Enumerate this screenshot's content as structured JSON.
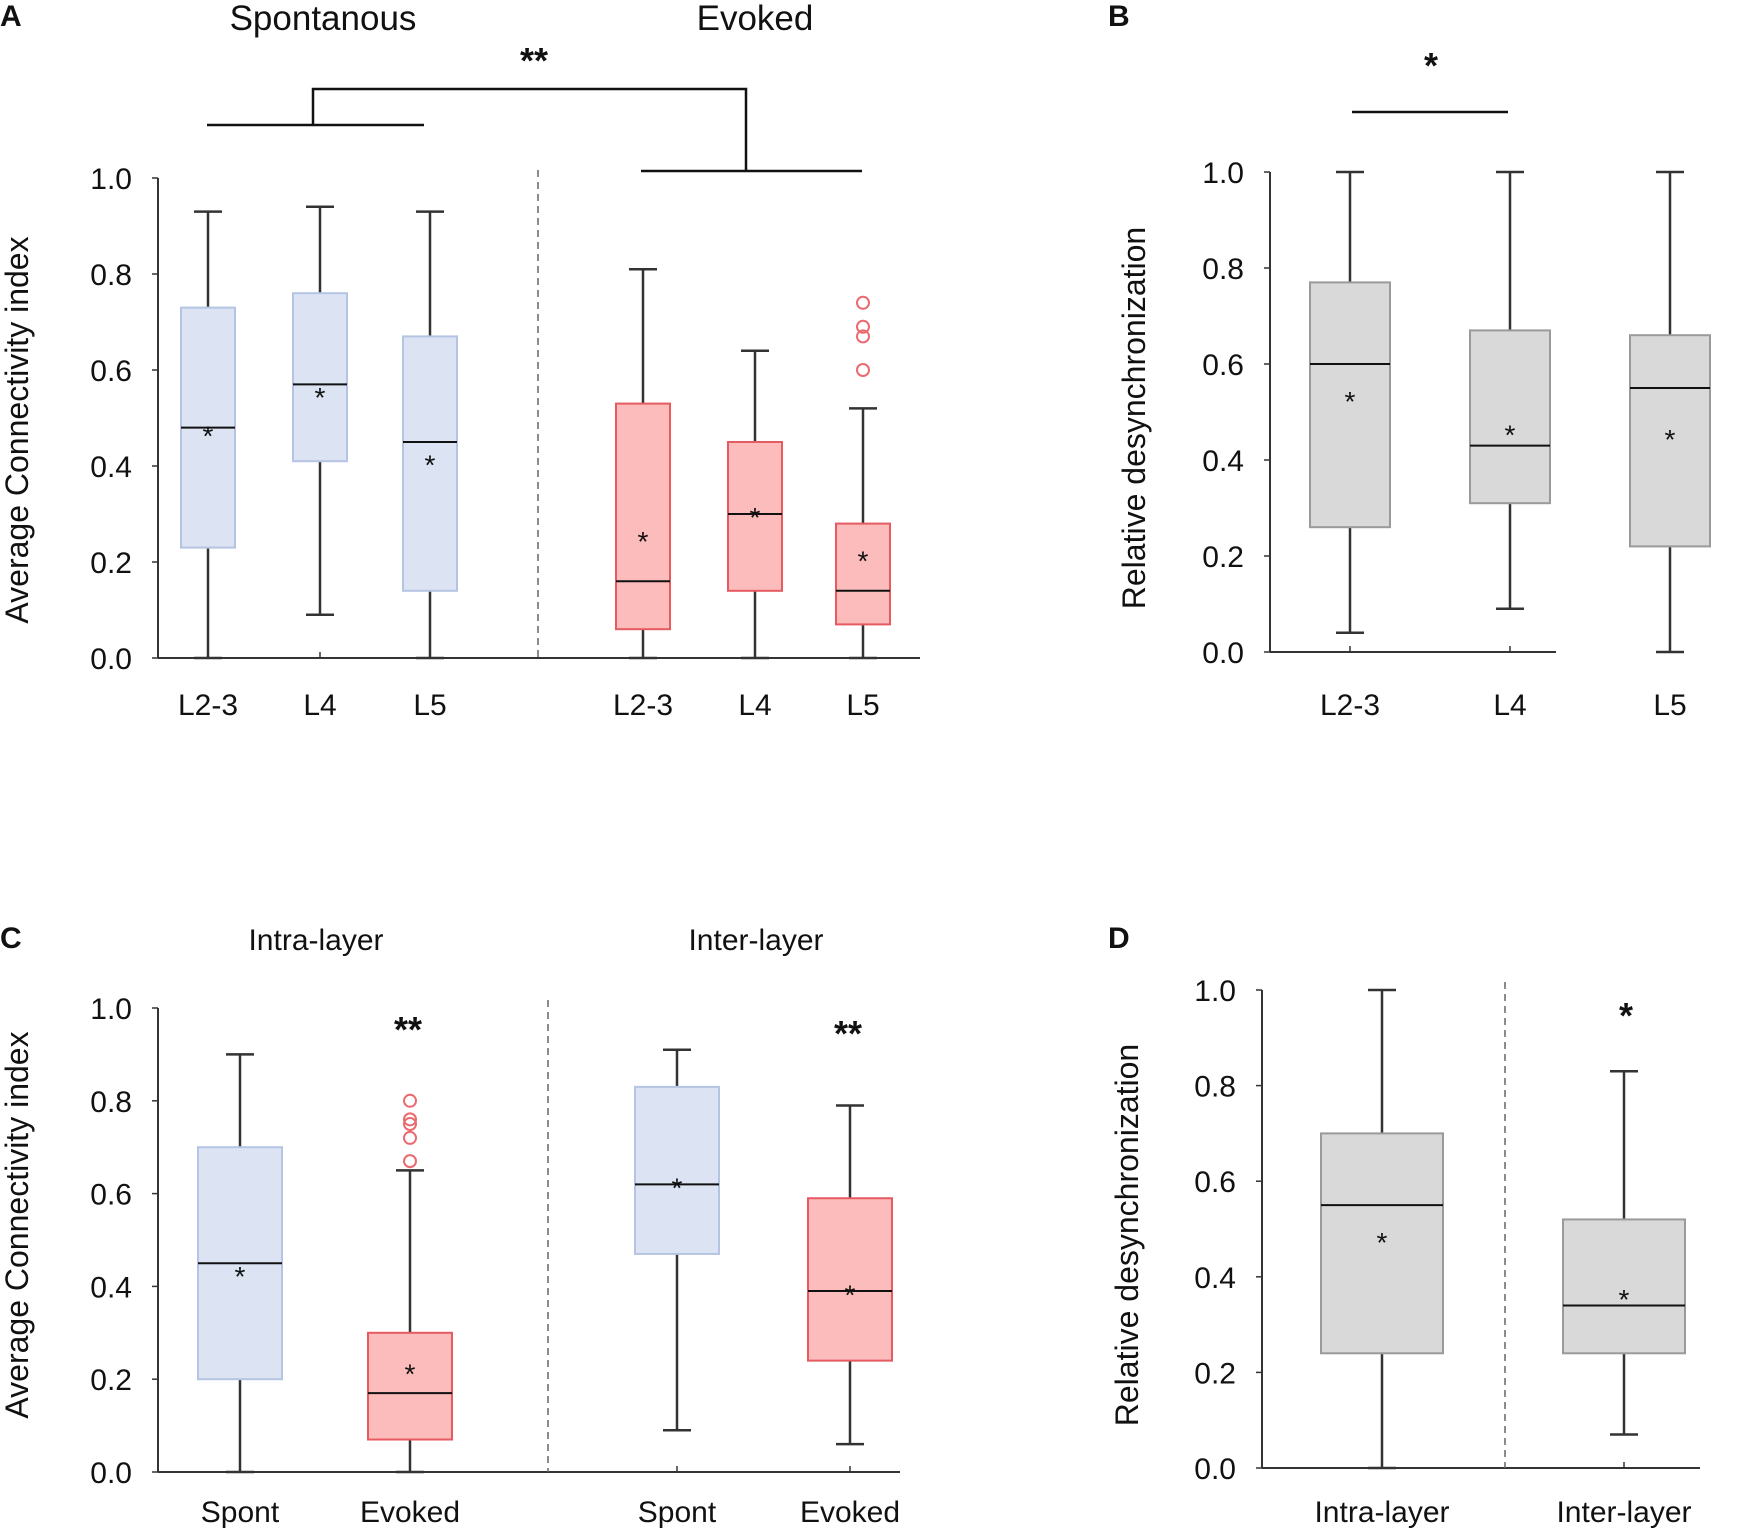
{
  "colors": {
    "spontaneous_fill": "#dce4f3",
    "spontaneous_edge": "#b5c4e2",
    "evoked_fill": "#fdbcbc",
    "evoked_edge": "#e65a62",
    "desync_fill": "#d9d9d9",
    "desync_edge": "#9a9a9a",
    "outlier": "#ea6a70"
  },
  "chart_data": [
    {
      "id": "A",
      "panel_label": "A",
      "type": "box",
      "ylabel": "Average Connectivity index",
      "ylim": [
        0,
        1
      ],
      "yticks": [
        "0.0",
        "0.2",
        "0.4",
        "0.6",
        "0.8",
        "1.0"
      ],
      "group_titles": [
        "Spontanous",
        "Evoked"
      ],
      "significance": [
        {
          "label": "**",
          "between": "Spontanous vs Evoked"
        }
      ],
      "boxes": [
        {
          "category": "L2-3",
          "group": "Spontanous",
          "color": "spontaneous",
          "min": 0.0,
          "q1": 0.23,
          "median": 0.48,
          "q3": 0.73,
          "max": 0.93,
          "mean": 0.48,
          "outliers": []
        },
        {
          "category": "L4",
          "group": "Spontanous",
          "color": "spontaneous",
          "min": 0.09,
          "q1": 0.41,
          "median": 0.57,
          "q3": 0.76,
          "max": 0.94,
          "mean": 0.56,
          "outliers": []
        },
        {
          "category": "L5",
          "group": "Spontanous",
          "color": "spontaneous",
          "min": 0.0,
          "q1": 0.14,
          "median": 0.45,
          "q3": 0.67,
          "max": 0.93,
          "mean": 0.42,
          "outliers": []
        },
        {
          "category": "L2-3",
          "group": "Evoked",
          "color": "evoked",
          "min": 0.0,
          "q1": 0.06,
          "median": 0.16,
          "q3": 0.53,
          "max": 0.81,
          "mean": 0.26,
          "outliers": []
        },
        {
          "category": "L4",
          "group": "Evoked",
          "color": "evoked",
          "min": 0.0,
          "q1": 0.14,
          "median": 0.3,
          "q3": 0.45,
          "max": 0.64,
          "mean": 0.31,
          "outliers": []
        },
        {
          "category": "L5",
          "group": "Evoked",
          "color": "evoked",
          "min": 0.0,
          "q1": 0.07,
          "median": 0.14,
          "q3": 0.28,
          "max": 0.52,
          "mean": 0.22,
          "outliers": [
            0.6,
            0.67,
            0.69,
            0.74
          ]
        }
      ]
    },
    {
      "id": "B",
      "panel_label": "B",
      "type": "box",
      "ylabel": "Relative desynchronization",
      "ylim": [
        0,
        1
      ],
      "yticks": [
        "0.0",
        "0.2",
        "0.4",
        "0.6",
        "0.8",
        "1.0"
      ],
      "group_titles": [],
      "significance": [
        {
          "label": "*",
          "between": "L2-3 vs L4"
        }
      ],
      "boxes": [
        {
          "category": "L2-3",
          "color": "desync",
          "min": 0.04,
          "q1": 0.26,
          "median": 0.6,
          "q3": 0.77,
          "max": 1.0,
          "mean": 0.54,
          "outliers": []
        },
        {
          "category": "L4",
          "color": "desync",
          "min": 0.09,
          "q1": 0.31,
          "median": 0.43,
          "q3": 0.67,
          "max": 1.0,
          "mean": 0.47,
          "outliers": []
        },
        {
          "category": "L5",
          "color": "desync",
          "min": 0.0,
          "q1": 0.22,
          "median": 0.55,
          "q3": 0.66,
          "max": 1.0,
          "mean": 0.46,
          "outliers": []
        }
      ]
    },
    {
      "id": "C",
      "panel_label": "C",
      "type": "box",
      "ylabel": "Average Connectivity index",
      "ylim": [
        0,
        1
      ],
      "yticks": [
        "0.0",
        "0.2",
        "0.4",
        "0.6",
        "0.8",
        "1.0"
      ],
      "group_titles": [
        "Intra-layer",
        "Inter-layer"
      ],
      "significance": [
        {
          "label": "**",
          "between": "Intra-layer Spont vs Evoked"
        },
        {
          "label": "**",
          "between": "Inter-layer Spont vs Evoked"
        }
      ],
      "boxes": [
        {
          "category": "Spont",
          "group": "Intra-layer",
          "color": "spontaneous",
          "min": 0.0,
          "q1": 0.2,
          "median": 0.45,
          "q3": 0.7,
          "max": 0.9,
          "mean": 0.44,
          "outliers": []
        },
        {
          "category": "Evoked",
          "group": "Intra-layer",
          "color": "evoked",
          "min": 0.0,
          "q1": 0.07,
          "median": 0.17,
          "q3": 0.3,
          "max": 0.65,
          "mean": 0.23,
          "outliers": [
            0.67,
            0.72,
            0.75,
            0.76,
            0.8
          ]
        },
        {
          "category": "Spont",
          "group": "Inter-layer",
          "color": "spontaneous",
          "min": 0.09,
          "q1": 0.47,
          "median": 0.62,
          "q3": 0.83,
          "max": 0.91,
          "mean": 0.63,
          "outliers": []
        },
        {
          "category": "Evoked",
          "group": "Inter-layer",
          "color": "evoked",
          "min": 0.06,
          "q1": 0.24,
          "median": 0.39,
          "q3": 0.59,
          "max": 0.79,
          "mean": 0.4,
          "outliers": []
        }
      ]
    },
    {
      "id": "D",
      "panel_label": "D",
      "type": "box",
      "ylabel": "Relative desynchronization",
      "ylim": [
        0,
        1
      ],
      "yticks": [
        "0.0",
        "0.2",
        "0.4",
        "0.6",
        "0.8",
        "1.0"
      ],
      "group_titles": [],
      "significance": [
        {
          "label": "*",
          "between": "Intra-layer vs Inter-layer"
        }
      ],
      "boxes": [
        {
          "category": "Intra-layer",
          "color": "desync",
          "min": 0.0,
          "q1": 0.24,
          "median": 0.55,
          "q3": 0.7,
          "max": 1.0,
          "mean": 0.49,
          "outliers": []
        },
        {
          "category": "Inter-layer",
          "color": "desync",
          "min": 0.07,
          "q1": 0.24,
          "median": 0.34,
          "q3": 0.52,
          "max": 0.83,
          "mean": 0.37,
          "outliers": []
        }
      ]
    }
  ]
}
